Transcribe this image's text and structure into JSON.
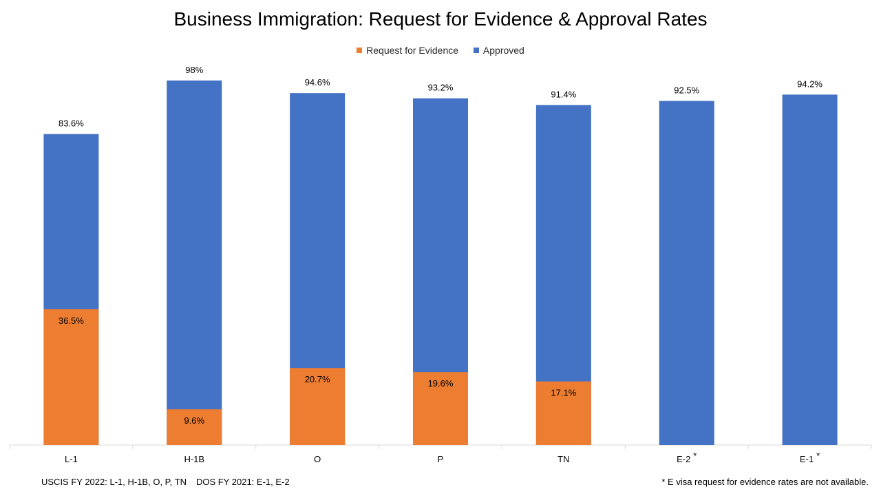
{
  "chart_data": {
    "type": "bar",
    "stacked": false,
    "title": "Business Immigration: Request for Evidence & Approval Rates",
    "categories": [
      "L-1",
      "H-1B",
      "O",
      "P",
      "TN",
      "E-2",
      "E-1"
    ],
    "category_markers": [
      "",
      "",
      "",
      "",
      "",
      "*",
      "*"
    ],
    "series": [
      {
        "name": "Request for Evidence",
        "color": "#ED7D31",
        "values": [
          36.5,
          9.6,
          20.7,
          19.6,
          17.1,
          null,
          null
        ],
        "labels": [
          "36.5%",
          "9.6%",
          "20.7%",
          "19.6%",
          "17.1%",
          "",
          ""
        ]
      },
      {
        "name": "Approved",
        "color": "#4472C4",
        "values": [
          83.6,
          98,
          94.6,
          93.2,
          91.4,
          92.5,
          94.2
        ],
        "labels": [
          "83.6%",
          "98%",
          "94.6%",
          "93.2%",
          "91.4%",
          "92.5%",
          "94.2%"
        ]
      }
    ],
    "ylim": [
      0,
      100
    ],
    "grid": false,
    "legend": "top-center",
    "xlabel": "",
    "ylabel": ""
  },
  "footer": {
    "source_uscis": "USCIS FY 2022: L-1, H-1B, O, P, TN",
    "source_dos": "DOS FY 2021: E-1, E-2",
    "note": "* E visa request for evidence rates are not available."
  }
}
